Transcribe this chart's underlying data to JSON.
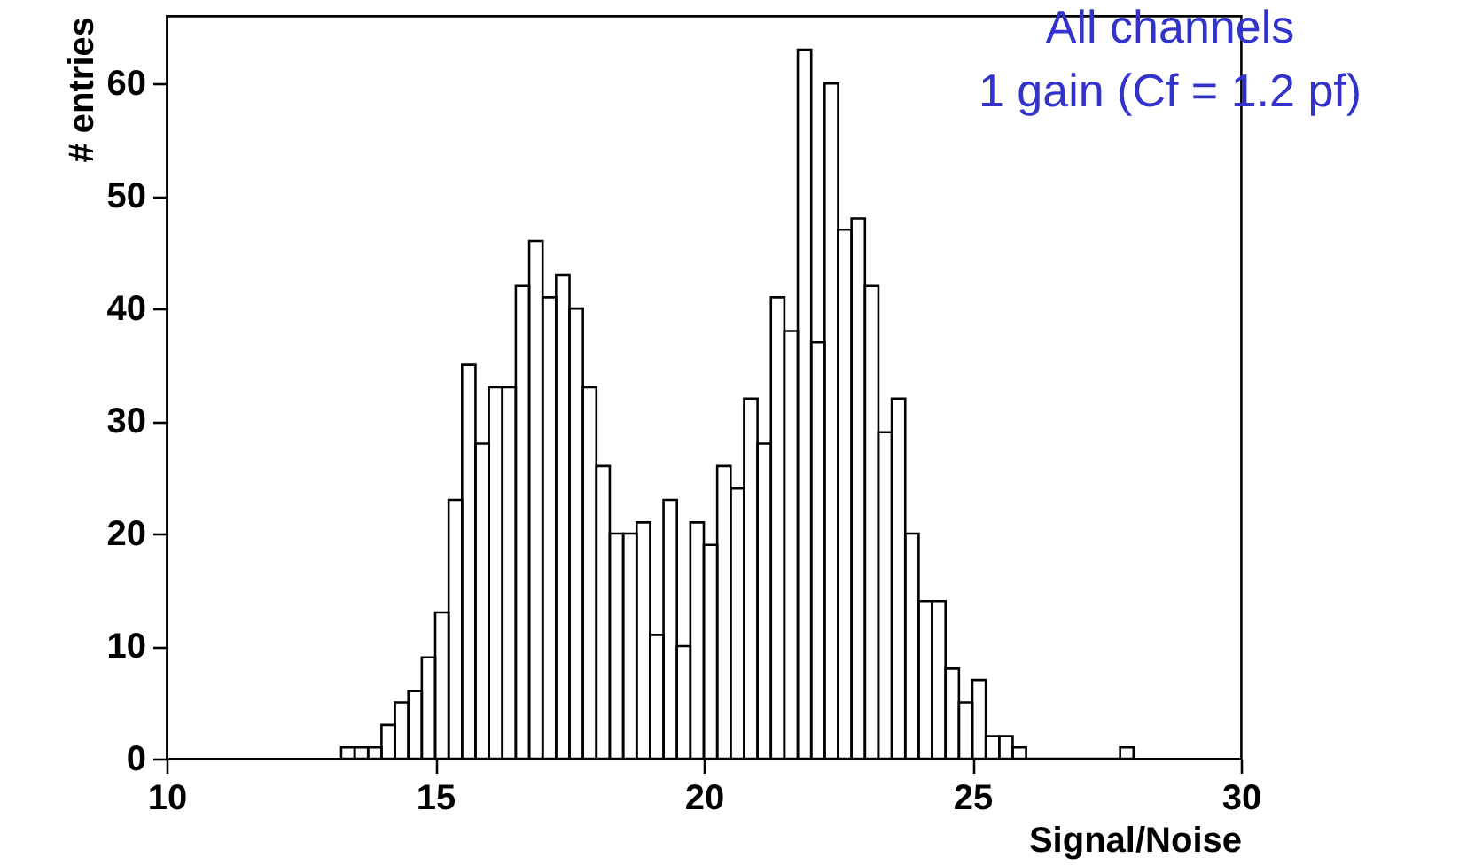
{
  "chart_data": {
    "type": "histogram",
    "annotations": [
      "All channels",
      "1 gain (Cf = 1.2 pf)"
    ],
    "xlabel": "Signal/Noise",
    "ylabel": "# entries",
    "bins": [
      13.25,
      13.5,
      13.75,
      14.0,
      14.25,
      14.5,
      14.75,
      15.0,
      15.25,
      15.5,
      15.75,
      16.0,
      16.25,
      16.5,
      16.75,
      17.0,
      17.25,
      17.5,
      17.75,
      18.0,
      18.25,
      18.5,
      18.75,
      19.0,
      19.25,
      19.5,
      19.75,
      20.0,
      20.25,
      20.5,
      20.75,
      21.0,
      21.25,
      21.5,
      21.75,
      22.0,
      22.25,
      22.5,
      22.75,
      23.0,
      23.25,
      23.5,
      23.75,
      24.0,
      24.25,
      24.5,
      24.75,
      25.0,
      25.25,
      25.5,
      25.75,
      26.0,
      26.25,
      26.5,
      26.75,
      27.0,
      27.25,
      27.5,
      27.75,
      28.0
    ],
    "values": [
      1,
      1,
      1,
      3,
      5,
      6,
      9,
      13,
      23,
      35,
      28,
      33,
      33,
      42,
      46,
      41,
      43,
      40,
      33,
      26,
      20,
      20,
      21,
      11,
      23,
      10,
      21,
      19,
      26,
      24,
      32,
      28,
      41,
      38,
      63,
      37,
      60,
      47,
      48,
      42,
      29,
      32,
      20,
      14,
      14,
      8,
      5,
      7,
      2,
      2,
      1,
      0,
      0,
      0,
      0,
      0,
      0,
      0,
      1
    ],
    "color": "#000000",
    "xlim": [
      10,
      30
    ],
    "xticks": [
      10,
      15,
      20,
      25,
      30
    ],
    "ylim": [
      0,
      66
    ],
    "yticks": [
      0,
      10,
      20,
      30,
      40,
      50,
      60
    ],
    "grid": false
  }
}
